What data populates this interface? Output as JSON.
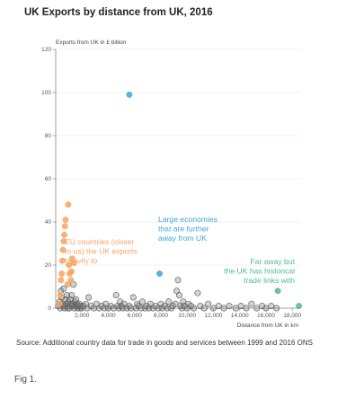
{
  "chart_data": {
    "type": "scatter",
    "title": "UK Exports by distance from UK, 2016",
    "ylabel": "Exports from UK in £ billion",
    "xlabel": "Distance from UK in km",
    "xlim": [
      0,
      18600
    ],
    "ylim": [
      0,
      120
    ],
    "xticks": [
      2000,
      4000,
      6000,
      8000,
      10000,
      12000,
      14000,
      16000,
      18000
    ],
    "xtick_labels": [
      "2,000",
      "4,000",
      "6,000",
      "8,000",
      "10,000",
      "12,000",
      "14,000",
      "16,000",
      "18,000"
    ],
    "yticks": [
      0,
      20,
      40,
      60,
      80,
      100,
      120
    ],
    "ytick_labels": [
      "0",
      "20",
      "40",
      "60",
      "80",
      "100",
      "120"
    ],
    "grid": "horizontal",
    "colors": {
      "eu": "#f4a460",
      "large": "#3ea6d6",
      "faraway": "#4dbd8a",
      "other": "#888888"
    },
    "series": [
      {
        "group": "eu",
        "points": [
          [
            300,
            2
          ],
          [
            350,
            6
          ],
          [
            400,
            13
          ],
          [
            450,
            16
          ],
          [
            500,
            22
          ],
          [
            550,
            27
          ],
          [
            600,
            31
          ],
          [
            650,
            34
          ],
          [
            700,
            38
          ],
          [
            750,
            41
          ],
          [
            900,
            11
          ],
          [
            950,
            48
          ],
          [
            1000,
            20
          ],
          [
            1050,
            16
          ],
          [
            1150,
            13
          ],
          [
            1200,
            17
          ],
          [
            1250,
            23
          ],
          [
            1400,
            21
          ]
        ]
      },
      {
        "group": "large",
        "points": [
          [
            5600,
            99
          ],
          [
            7900,
            16
          ]
        ]
      },
      {
        "group": "faraway",
        "points": [
          [
            16900,
            8
          ],
          [
            18500,
            1
          ]
        ]
      },
      {
        "group": "other",
        "points": [
          [
            200,
            1
          ],
          [
            300,
            3
          ],
          [
            350,
            0
          ],
          [
            400,
            8
          ],
          [
            450,
            5
          ],
          [
            500,
            2
          ],
          [
            550,
            1
          ],
          [
            600,
            9
          ],
          [
            650,
            0
          ],
          [
            700,
            1
          ],
          [
            750,
            4
          ],
          [
            800,
            2
          ],
          [
            850,
            6
          ],
          [
            900,
            0
          ],
          [
            950,
            3
          ],
          [
            1000,
            1
          ],
          [
            1050,
            0
          ],
          [
            1100,
            4
          ],
          [
            1150,
            2
          ],
          [
            1200,
            6
          ],
          [
            1250,
            1
          ],
          [
            1300,
            2
          ],
          [
            1350,
            11
          ],
          [
            1400,
            0
          ],
          [
            1450,
            3
          ],
          [
            1500,
            1
          ],
          [
            1550,
            4
          ],
          [
            1600,
            2
          ],
          [
            1650,
            0
          ],
          [
            1700,
            1
          ],
          [
            1800,
            2
          ],
          [
            1850,
            0
          ],
          [
            1900,
            1
          ],
          [
            2000,
            0
          ],
          [
            2100,
            1
          ],
          [
            2300,
            2
          ],
          [
            2400,
            0
          ],
          [
            2500,
            5
          ],
          [
            2700,
            1
          ],
          [
            2900,
            0
          ],
          [
            3100,
            2
          ],
          [
            3300,
            0
          ],
          [
            3500,
            1
          ],
          [
            3700,
            0
          ],
          [
            3800,
            2
          ],
          [
            4000,
            0
          ],
          [
            4200,
            1
          ],
          [
            4400,
            0
          ],
          [
            4600,
            6
          ],
          [
            4700,
            1
          ],
          [
            4800,
            0
          ],
          [
            4900,
            3
          ],
          [
            5000,
            1
          ],
          [
            5100,
            0
          ],
          [
            5200,
            2
          ],
          [
            5400,
            0
          ],
          [
            5600,
            1
          ],
          [
            5700,
            0
          ],
          [
            5900,
            5
          ],
          [
            6100,
            0
          ],
          [
            6200,
            2
          ],
          [
            6300,
            1
          ],
          [
            6500,
            0
          ],
          [
            6600,
            3
          ],
          [
            6800,
            0
          ],
          [
            6900,
            1
          ],
          [
            7100,
            0
          ],
          [
            7200,
            2
          ],
          [
            7400,
            0
          ],
          [
            7600,
            1
          ],
          [
            7800,
            0
          ],
          [
            8000,
            2
          ],
          [
            8100,
            0
          ],
          [
            8300,
            1
          ],
          [
            8500,
            0
          ],
          [
            8600,
            3
          ],
          [
            8800,
            0
          ],
          [
            8900,
            1
          ],
          [
            9100,
            2
          ],
          [
            9200,
            8
          ],
          [
            9300,
            13
          ],
          [
            9400,
            6
          ],
          [
            9500,
            1
          ],
          [
            9600,
            0
          ],
          [
            9700,
            3
          ],
          [
            9800,
            1
          ],
          [
            10000,
            0
          ],
          [
            10100,
            2
          ],
          [
            10300,
            1
          ],
          [
            10500,
            0
          ],
          [
            10800,
            7
          ],
          [
            11000,
            1
          ],
          [
            11300,
            0
          ],
          [
            11600,
            2
          ],
          [
            12000,
            0
          ],
          [
            12400,
            1
          ],
          [
            12800,
            0
          ],
          [
            13200,
            1
          ],
          [
            13700,
            0
          ],
          [
            14100,
            1
          ],
          [
            14500,
            0
          ],
          [
            14900,
            2
          ],
          [
            15300,
            0
          ],
          [
            15700,
            1
          ],
          [
            16000,
            0
          ],
          [
            16400,
            1
          ],
          [
            16800,
            0
          ]
        ]
      }
    ],
    "annotations": [
      {
        "group": "eu",
        "lines": [
          "EU countries (closer",
          "to us) the UK exports",
          "heavily to"
        ]
      },
      {
        "group": "large",
        "lines": [
          "Large economies",
          "that are further",
          "away from UK"
        ]
      },
      {
        "group": "faraway",
        "lines": [
          "Far away but",
          "the UK has historical",
          "trade links with"
        ]
      }
    ]
  },
  "source": "Source: Additional country data for trade in goods and services between 1999 and 2016 ONS",
  "figure_label": "Fig 1."
}
